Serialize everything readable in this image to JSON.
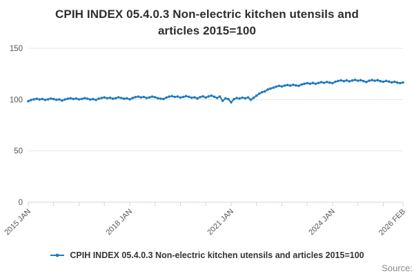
{
  "header": {
    "title_line1": "CPIH INDEX 05.4.0.3 Non-electric kitchen utensils and",
    "title_line2": "articles 2015=100"
  },
  "legend": {
    "label": "CPIH INDEX 05.4.0.3 Non-electric kitchen utensils and articles 2015=100"
  },
  "footer": {
    "source_label": "Source:"
  },
  "chart_data": {
    "type": "line",
    "title": "CPIH INDEX 05.4.0.3 Non-electric kitchen utensils and articles 2015=100",
    "x_start": "2015 JAN",
    "x_end": "2026 FEB",
    "x_unit": "month",
    "ylim": [
      0,
      150
    ],
    "y_ticks": [
      0,
      50,
      100,
      150
    ],
    "grid": "horizontal",
    "legend_position": "bottom",
    "colors": {
      "line": "#1e7ac0",
      "grid": "#e6e6e6",
      "axis": "#ccd6eb",
      "tick_text": "#555555"
    },
    "x_tick_month_interval": 9,
    "x_labels": [
      {
        "month_index": 0,
        "label": "2015 JAN"
      },
      {
        "month_index": 36,
        "label": "2018 JAN"
      },
      {
        "month_index": 72,
        "label": "2021 JAN"
      },
      {
        "month_index": 108,
        "label": "2024 JAN"
      },
      {
        "month_index": 133,
        "label": "2026 FEB"
      }
    ],
    "series": [
      {
        "name": "CPIH INDEX 05.4.0.3 Non-electric kitchen utensils and articles 2015=100",
        "color": "#1e7ac0",
        "values": [
          98.4,
          99.6,
          100.3,
          100.8,
          100.1,
          100.6,
          99.7,
          100.3,
          101.0,
          100.5,
          99.8,
          100.2,
          99.0,
          100.1,
          100.8,
          101.3,
          100.6,
          101.0,
          100.2,
          100.7,
          101.4,
          100.9,
          100.1,
          100.5,
          99.7,
          100.9,
          101.6,
          102.1,
          101.4,
          101.8,
          100.9,
          101.4,
          102.2,
          101.6,
          100.8,
          101.2,
          100.3,
          101.5,
          102.4,
          102.9,
          102.1,
          102.6,
          101.6,
          102.1,
          102.9,
          102.3,
          101.4,
          100.9,
          100.6,
          102.0,
          102.9,
          103.4,
          102.6,
          103.0,
          102.0,
          102.6,
          103.4,
          102.7,
          101.8,
          102.2,
          101.1,
          102.4,
          103.2,
          102.0,
          103.1,
          103.8,
          102.8,
          101.6,
          103.0,
          98.8,
          101.2,
          100.4,
          97.3,
          100.4,
          101.5,
          101.0,
          101.9,
          101.3,
          102.1,
          99.8,
          101.8,
          103.8,
          105.8,
          107.2,
          108.0,
          109.8,
          110.8,
          111.6,
          112.6,
          113.4,
          112.8,
          113.6,
          114.2,
          113.6,
          114.4,
          113.8,
          113.4,
          114.6,
          115.4,
          116.0,
          115.4,
          116.2,
          115.4,
          116.2,
          117.0,
          116.4,
          117.2,
          116.6,
          116.0,
          117.4,
          118.2,
          118.8,
          118.0,
          118.8,
          117.8,
          118.6,
          119.2,
          118.4,
          118.9,
          118.0,
          117.2,
          118.4,
          119.0,
          118.4,
          118.9,
          118.0,
          117.4,
          118.2,
          117.6,
          116.8,
          117.4,
          116.6,
          116.0,
          116.7
        ]
      }
    ]
  }
}
